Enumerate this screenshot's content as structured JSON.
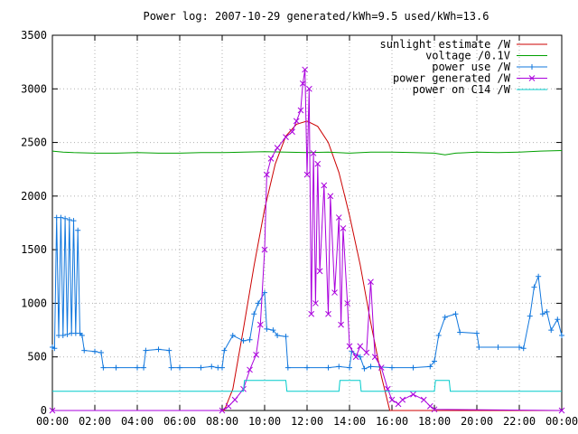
{
  "chart_data": {
    "type": "line",
    "title": "Power log: 2007-10-29 generated/kWh=9.5 used/kWh=13.6",
    "xlabel": "",
    "ylabel": "",
    "xlim": [
      0,
      24
    ],
    "ylim": [
      0,
      3500
    ],
    "grid": true,
    "legend_position": "top-right",
    "x_ticks": [
      {
        "value": 0,
        "label": "00:00"
      },
      {
        "value": 2,
        "label": "02:00"
      },
      {
        "value": 4,
        "label": "04:00"
      },
      {
        "value": 6,
        "label": "06:00"
      },
      {
        "value": 8,
        "label": "08:00"
      },
      {
        "value": 10,
        "label": "10:00"
      },
      {
        "value": 12,
        "label": "12:00"
      },
      {
        "value": 14,
        "label": "14:00"
      },
      {
        "value": 16,
        "label": "16:00"
      },
      {
        "value": 18,
        "label": "18:00"
      },
      {
        "value": 20,
        "label": "20:00"
      },
      {
        "value": 22,
        "label": "22:00"
      },
      {
        "value": 24,
        "label": "00:00"
      }
    ],
    "y_ticks": [
      {
        "value": 0,
        "label": "0"
      },
      {
        "value": 500,
        "label": "500"
      },
      {
        "value": 1000,
        "label": "1000"
      },
      {
        "value": 1500,
        "label": "1500"
      },
      {
        "value": 2000,
        "label": "2000"
      },
      {
        "value": 2500,
        "label": "2500"
      },
      {
        "value": 3000,
        "label": "3000"
      },
      {
        "value": 3500,
        "label": "3500"
      }
    ],
    "series": [
      {
        "name": "sunlight estimate /W",
        "color": "#cc0000",
        "marker": "none",
        "points": [
          [
            0,
            0
          ],
          [
            8.1,
            0
          ],
          [
            8.5,
            200
          ],
          [
            9,
            760
          ],
          [
            9.5,
            1350
          ],
          [
            10,
            1880
          ],
          [
            10.5,
            2300
          ],
          [
            11,
            2560
          ],
          [
            11.5,
            2670
          ],
          [
            12,
            2700
          ],
          [
            12.5,
            2650
          ],
          [
            13,
            2500
          ],
          [
            13.5,
            2220
          ],
          [
            14,
            1820
          ],
          [
            14.5,
            1360
          ],
          [
            15,
            820
          ],
          [
            15.5,
            320
          ],
          [
            15.9,
            0
          ],
          [
            24,
            0
          ]
        ]
      },
      {
        "name": "voltage /0.1V",
        "color": "#00a000",
        "marker": "none",
        "points": [
          [
            0,
            2420
          ],
          [
            0.5,
            2410
          ],
          [
            1,
            2405
          ],
          [
            2,
            2400
          ],
          [
            3,
            2400
          ],
          [
            4,
            2405
          ],
          [
            5,
            2400
          ],
          [
            6,
            2400
          ],
          [
            7,
            2405
          ],
          [
            8,
            2405
          ],
          [
            9,
            2410
          ],
          [
            10,
            2415
          ],
          [
            11,
            2410
          ],
          [
            12,
            2405
          ],
          [
            13,
            2410
          ],
          [
            14,
            2400
          ],
          [
            15,
            2410
          ],
          [
            16,
            2410
          ],
          [
            17,
            2405
          ],
          [
            18,
            2400
          ],
          [
            18.5,
            2385
          ],
          [
            19,
            2400
          ],
          [
            20,
            2410
          ],
          [
            21,
            2405
          ],
          [
            22,
            2410
          ],
          [
            23,
            2420
          ],
          [
            24,
            2425
          ]
        ]
      },
      {
        "name": "power use /W",
        "color": "#1177dd",
        "marker": "plus",
        "points": [
          [
            0,
            590
          ],
          [
            0.1,
            580
          ],
          [
            0.2,
            1800
          ],
          [
            0.3,
            700
          ],
          [
            0.4,
            1800
          ],
          [
            0.5,
            700
          ],
          [
            0.6,
            1790
          ],
          [
            0.7,
            710
          ],
          [
            0.8,
            1780
          ],
          [
            0.9,
            720
          ],
          [
            1,
            1770
          ],
          [
            1.1,
            720
          ],
          [
            1.2,
            1680
          ],
          [
            1.3,
            720
          ],
          [
            1.4,
            700
          ],
          [
            1.5,
            560
          ],
          [
            2,
            550
          ],
          [
            2.3,
            540
          ],
          [
            2.4,
            400
          ],
          [
            3,
            400
          ],
          [
            4,
            400
          ],
          [
            4.3,
            400
          ],
          [
            4.4,
            560
          ],
          [
            5,
            570
          ],
          [
            5.5,
            560
          ],
          [
            5.6,
            400
          ],
          [
            6,
            400
          ],
          [
            7,
            400
          ],
          [
            7.5,
            410
          ],
          [
            7.8,
            400
          ],
          [
            8,
            400
          ],
          [
            8.1,
            560
          ],
          [
            8.5,
            700
          ],
          [
            9,
            650
          ],
          [
            9.3,
            660
          ],
          [
            9.5,
            900
          ],
          [
            9.7,
            1000
          ],
          [
            10,
            1100
          ],
          [
            10.1,
            760
          ],
          [
            10.4,
            750
          ],
          [
            10.6,
            700
          ],
          [
            11,
            690
          ],
          [
            11.1,
            400
          ],
          [
            12,
            400
          ],
          [
            13,
            400
          ],
          [
            13.5,
            410
          ],
          [
            14,
            400
          ],
          [
            14.1,
            550
          ],
          [
            14.5,
            500
          ],
          [
            14.7,
            390
          ],
          [
            15,
            410
          ],
          [
            16,
            400
          ],
          [
            17,
            400
          ],
          [
            17.8,
            410
          ],
          [
            18,
            460
          ],
          [
            18.2,
            700
          ],
          [
            18.5,
            870
          ],
          [
            19,
            900
          ],
          [
            19.2,
            730
          ],
          [
            20,
            720
          ],
          [
            20.1,
            590
          ],
          [
            21,
            590
          ],
          [
            22,
            590
          ],
          [
            22.2,
            580
          ],
          [
            22.5,
            880
          ],
          [
            22.7,
            1150
          ],
          [
            22.9,
            1250
          ],
          [
            23.1,
            900
          ],
          [
            23.3,
            920
          ],
          [
            23.5,
            750
          ],
          [
            23.8,
            850
          ],
          [
            24,
            700
          ]
        ]
      },
      {
        "name": "power generated /W",
        "color": "#aa00dd",
        "marker": "cross",
        "points": [
          [
            0,
            0
          ],
          [
            8,
            0
          ],
          [
            8.3,
            40
          ],
          [
            8.6,
            100
          ],
          [
            9,
            200
          ],
          [
            9.3,
            380
          ],
          [
            9.6,
            520
          ],
          [
            9.8,
            800
          ],
          [
            10,
            1500
          ],
          [
            10.1,
            2200
          ],
          [
            10.3,
            2350
          ],
          [
            10.6,
            2450
          ],
          [
            11,
            2550
          ],
          [
            11.3,
            2600
          ],
          [
            11.5,
            2700
          ],
          [
            11.7,
            2800
          ],
          [
            11.8,
            3050
          ],
          [
            11.9,
            3180
          ],
          [
            12,
            2200
          ],
          [
            12.1,
            3000
          ],
          [
            12.2,
            900
          ],
          [
            12.3,
            2400
          ],
          [
            12.4,
            1000
          ],
          [
            12.5,
            2300
          ],
          [
            12.6,
            1300
          ],
          [
            12.8,
            2100
          ],
          [
            13,
            900
          ],
          [
            13.1,
            2000
          ],
          [
            13.3,
            1100
          ],
          [
            13.5,
            1800
          ],
          [
            13.6,
            800
          ],
          [
            13.7,
            1700
          ],
          [
            13.9,
            1000
          ],
          [
            14,
            600
          ],
          [
            14.3,
            500
          ],
          [
            14.5,
            600
          ],
          [
            14.8,
            540
          ],
          [
            15,
            1200
          ],
          [
            15.2,
            500
          ],
          [
            15.5,
            400
          ],
          [
            15.8,
            200
          ],
          [
            16,
            100
          ],
          [
            16.3,
            60
          ],
          [
            16.5,
            100
          ],
          [
            17,
            150
          ],
          [
            17.5,
            100
          ],
          [
            17.8,
            40
          ],
          [
            18,
            10
          ],
          [
            24,
            0
          ]
        ]
      },
      {
        "name": "power on C14 /W",
        "color": "#00cccc",
        "marker": "none",
        "points": [
          [
            0,
            180
          ],
          [
            9,
            180
          ],
          [
            9.05,
            280
          ],
          [
            11,
            280
          ],
          [
            11.05,
            180
          ],
          [
            13.5,
            180
          ],
          [
            13.55,
            280
          ],
          [
            14.5,
            280
          ],
          [
            14.55,
            180
          ],
          [
            18,
            180
          ],
          [
            18.05,
            280
          ],
          [
            18.7,
            280
          ],
          [
            18.75,
            180
          ],
          [
            24,
            180
          ]
        ]
      }
    ]
  }
}
